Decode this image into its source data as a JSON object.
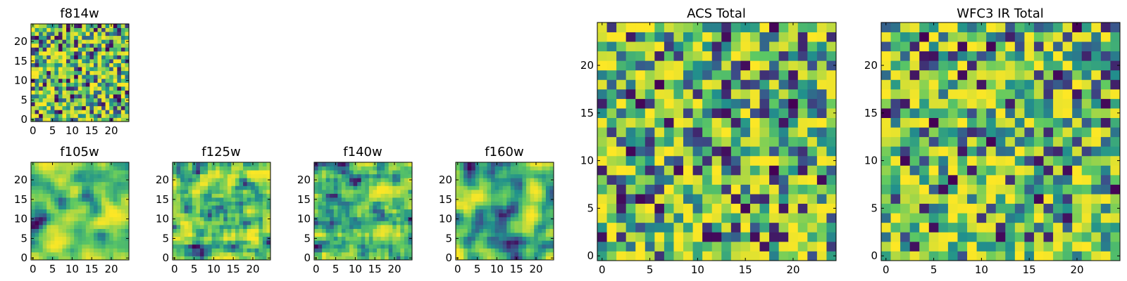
{
  "colormap": [
    "#440154",
    "#3b528b",
    "#21918c",
    "#5ec962",
    "#fde725"
  ],
  "chart_data": [
    {
      "id": "f814w",
      "type": "heatmap",
      "title": "f814w",
      "grid_size": 25,
      "seed": 814,
      "smooth": 0,
      "x_ticks": [
        0,
        5,
        10,
        15,
        20
      ],
      "y_ticks": [
        0,
        5,
        10,
        15,
        20
      ],
      "xlim": [
        -0.5,
        24.5
      ],
      "ylim": [
        -0.5,
        24.5
      ]
    },
    {
      "id": "f105w",
      "type": "heatmap",
      "title": "f105w",
      "grid_size": 25,
      "seed": 105,
      "smooth": 2,
      "x_ticks": [
        0,
        5,
        10,
        15,
        20
      ],
      "y_ticks": [
        0,
        5,
        10,
        15,
        20
      ],
      "xlim": [
        -0.5,
        24.5
      ],
      "ylim": [
        -0.5,
        24.5
      ]
    },
    {
      "id": "f125w",
      "type": "heatmap",
      "title": "f125w",
      "grid_size": 25,
      "seed": 125,
      "smooth": 1,
      "x_ticks": [
        0,
        5,
        10,
        15,
        20
      ],
      "y_ticks": [
        0,
        5,
        10,
        15,
        20
      ],
      "xlim": [
        -0.5,
        24.5
      ],
      "ylim": [
        -0.5,
        24.5
      ]
    },
    {
      "id": "f140w",
      "type": "heatmap",
      "title": "f140w",
      "grid_size": 25,
      "seed": 140,
      "smooth": 1,
      "x_ticks": [
        0,
        5,
        10,
        15,
        20
      ],
      "y_ticks": [
        0,
        5,
        10,
        15,
        20
      ],
      "xlim": [
        -0.5,
        24.5
      ],
      "ylim": [
        -0.5,
        24.5
      ]
    },
    {
      "id": "f160w",
      "type": "heatmap",
      "title": "f160w",
      "grid_size": 25,
      "seed": 160,
      "smooth": 2,
      "x_ticks": [
        0,
        5,
        10,
        15,
        20
      ],
      "y_ticks": [
        0,
        5,
        10,
        15,
        20
      ],
      "xlim": [
        -0.5,
        24.5
      ],
      "ylim": [
        -0.5,
        24.5
      ]
    },
    {
      "id": "acs-total",
      "type": "heatmap",
      "title": "ACS Total",
      "grid_size": 25,
      "seed": 301,
      "smooth": 0,
      "x_ticks": [
        0,
        5,
        10,
        15,
        20
      ],
      "y_ticks": [
        0,
        5,
        10,
        15,
        20
      ],
      "xlim": [
        -0.5,
        24.5
      ],
      "ylim": [
        -0.5,
        24.5
      ]
    },
    {
      "id": "wfc3-ir-total",
      "type": "heatmap",
      "title": "WFC3 IR Total",
      "grid_size": 25,
      "seed": 302,
      "smooth": 0,
      "x_ticks": [
        0,
        5,
        10,
        15,
        20
      ],
      "y_ticks": [
        0,
        5,
        10,
        15,
        20
      ],
      "xlim": [
        -0.5,
        24.5
      ],
      "ylim": [
        -0.5,
        24.5
      ]
    }
  ]
}
